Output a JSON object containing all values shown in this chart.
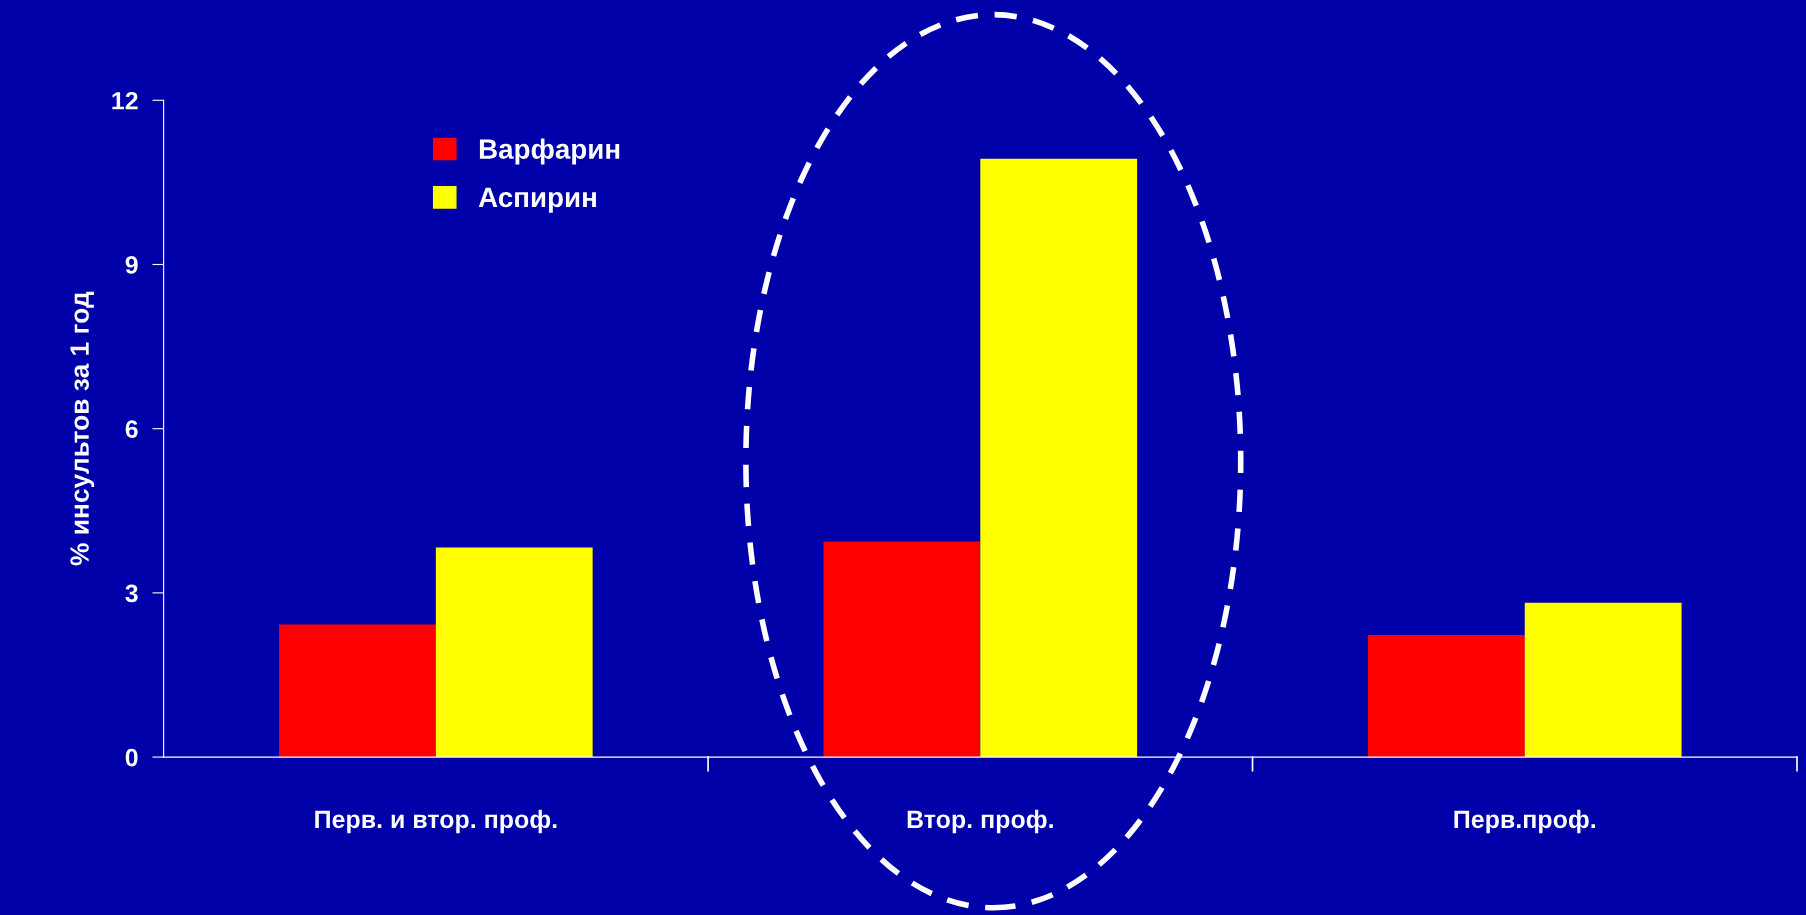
{
  "chart_data": {
    "type": "bar",
    "ylabel": "% инсультов за 1 год",
    "categories": [
      "Перв. и втор. проф.",
      "Втор. проф.",
      "Перв.проф."
    ],
    "series": [
      {
        "name": "Варфарин",
        "color": "#ff0000",
        "values": [
          2.42,
          3.94,
          2.23
        ]
      },
      {
        "name": "Аспирин",
        "color": "#ffff00",
        "values": [
          3.83,
          10.93,
          2.82
        ]
      }
    ],
    "ylim": [
      0,
      12
    ],
    "yticks": [
      0,
      3,
      6,
      9,
      12
    ],
    "grid": false,
    "legend": "top left"
  }
}
